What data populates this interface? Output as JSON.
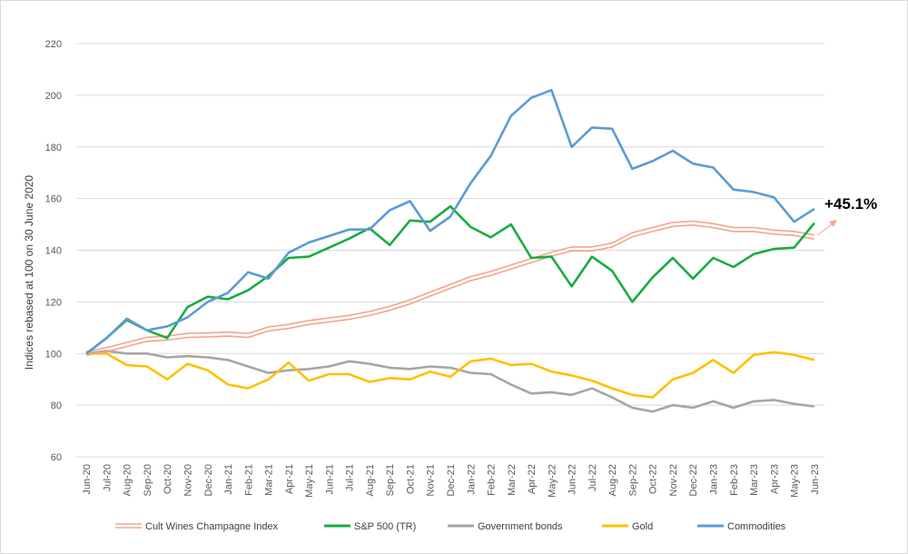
{
  "chart_data": {
    "type": "line",
    "title": "",
    "xlabel": "",
    "ylabel": "Indices rebased at 100 on 30 June 2020",
    "ylim": [
      60,
      220
    ],
    "yticks": [
      60,
      80,
      100,
      120,
      140,
      160,
      180,
      200,
      220
    ],
    "grid": true,
    "legend_position": "bottom",
    "categories": [
      "Jun-20",
      "Jul-20",
      "Aug-20",
      "Sep-20",
      "Oct-20",
      "Nov-20",
      "Dec-20",
      "Jan-21",
      "Feb-21",
      "Mar-21",
      "Apr-21",
      "May-21",
      "Jun-21",
      "Jul-21",
      "Aug-21",
      "Sep-21",
      "Oct-21",
      "Nov-21",
      "Dec-21",
      "Jan-22",
      "Feb-22",
      "Mar-22",
      "Apr-22",
      "May-22",
      "Jun-22",
      "Jul-22",
      "Aug-22",
      "Sep-22",
      "Oct-22",
      "Nov-22",
      "Dec-22",
      "Jan-23",
      "Feb-23",
      "Mar-23",
      "Apr-23",
      "May-23",
      "Jun-23"
    ],
    "series": [
      {
        "name": "Cult Wines Champagne Index",
        "color": "#f4a58a",
        "style": "double",
        "values": [
          100,
          101.5,
          103.5,
          105.5,
          106,
          107,
          107.2,
          107.5,
          107,
          109.5,
          110.5,
          112,
          113,
          114,
          115.5,
          117.5,
          120,
          123,
          126,
          129,
          131,
          133.5,
          136,
          138.5,
          140.5,
          140.5,
          142,
          146,
          148,
          150,
          150.5,
          149.5,
          148,
          148,
          147,
          146.5,
          145.1
        ]
      },
      {
        "name": "S&P 500 (TR)",
        "color": "#1aab40",
        "style": "solid",
        "values": [
          100,
          106,
          113,
          109,
          106,
          118,
          122,
          121,
          124.5,
          130,
          137,
          137.5,
          141,
          144.5,
          148.5,
          142,
          151.5,
          151,
          157,
          149,
          145,
          150,
          137,
          137.5,
          126,
          137.5,
          132,
          120,
          129.5,
          137,
          129,
          137,
          133.5,
          138.5,
          140.5,
          141,
          150.5
        ]
      },
      {
        "name": "Government bonds",
        "color": "#a6a6a6",
        "style": "solid",
        "values": [
          100,
          101,
          100,
          100,
          98.5,
          99,
          98.5,
          97.5,
          95,
          92.5,
          93.5,
          94,
          95,
          97,
          96,
          94.5,
          94,
          95,
          94.5,
          92.5,
          92,
          88,
          84.5,
          85,
          84,
          86.5,
          83,
          79,
          77.5,
          80,
          79,
          81.5,
          79,
          81.5,
          82,
          80.5,
          79.5
        ]
      },
      {
        "name": "Gold",
        "color": "#ffc000",
        "style": "solid",
        "values": [
          100,
          100,
          95.5,
          95,
          90,
          96,
          93.5,
          88,
          86.5,
          90,
          96.5,
          89.5,
          92,
          92,
          89,
          90.5,
          90,
          93,
          91,
          97,
          98,
          95.5,
          96,
          93,
          91.5,
          89.5,
          86.5,
          84,
          83,
          90,
          92.5,
          97.5,
          92.5,
          99.5,
          100.5,
          99.5,
          97.5
        ]
      },
      {
        "name": "Commodities",
        "color": "#5b9bd5",
        "style": "solid",
        "values": [
          100,
          106,
          113.5,
          109,
          110.5,
          114,
          120,
          123.5,
          131.5,
          129,
          139,
          143,
          145.5,
          148,
          148,
          155.5,
          159,
          147.5,
          153,
          166,
          176.5,
          192,
          199,
          202,
          180,
          187.5,
          187,
          171.5,
          174.5,
          178.5,
          173.5,
          172,
          163.5,
          162.5,
          160.5,
          151,
          156
        ]
      }
    ],
    "annotation": {
      "text": "+45.1%"
    }
  }
}
